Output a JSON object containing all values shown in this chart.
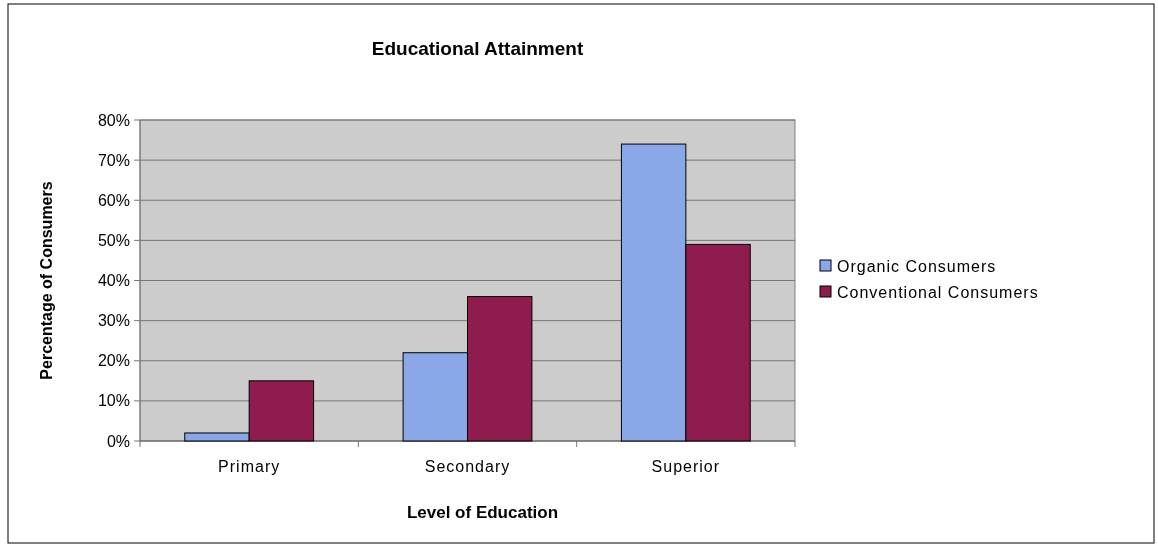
{
  "chart_data": {
    "type": "bar",
    "title": "Educational Attainment",
    "xlabel": "Level of Education",
    "ylabel": "Percentage of Consumers",
    "categories": [
      "Primary",
      "Secondary",
      "Superior"
    ],
    "series": [
      {
        "name": "Organic Consumers",
        "color": "#8aa8e8",
        "values": [
          2,
          22,
          74
        ]
      },
      {
        "name": "Conventional Consumers",
        "color": "#8e1c4e",
        "values": [
          15,
          36,
          49
        ]
      }
    ],
    "ylim": [
      0,
      80
    ],
    "yticks": [
      {
        "value": 0,
        "label": "0%"
      },
      {
        "value": 10,
        "label": "10%"
      },
      {
        "value": 20,
        "label": "20%"
      },
      {
        "value": 30,
        "label": "30%"
      },
      {
        "value": 40,
        "label": "40%"
      },
      {
        "value": 50,
        "label": "50%"
      },
      {
        "value": 60,
        "label": "60%"
      },
      {
        "value": 70,
        "label": "70%"
      },
      {
        "value": 80,
        "label": "80%"
      }
    ],
    "grid": "y",
    "legend": "right"
  }
}
